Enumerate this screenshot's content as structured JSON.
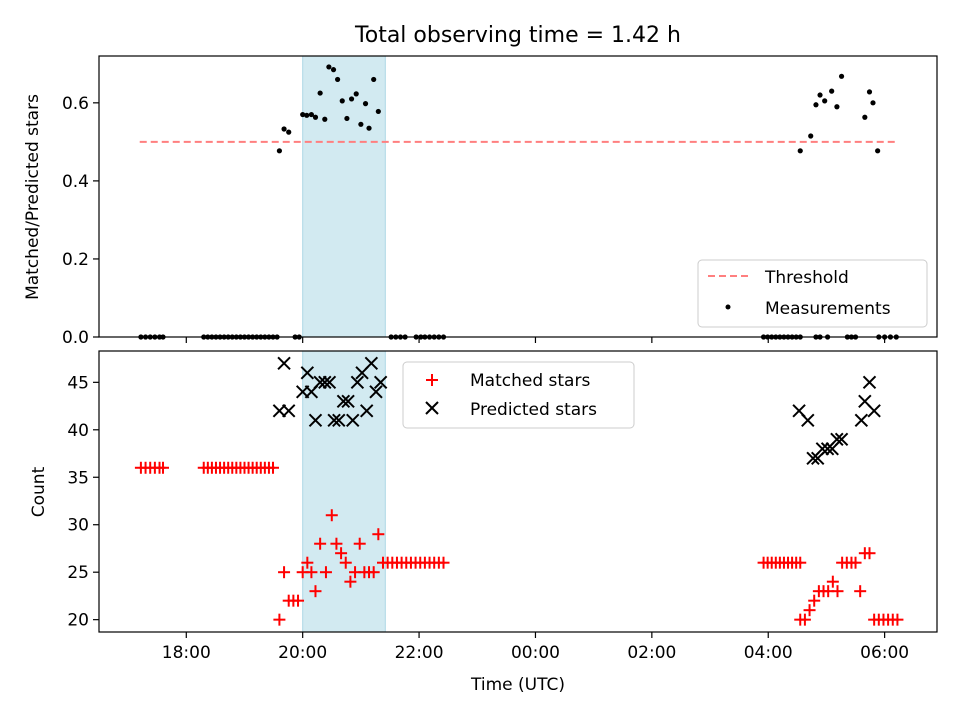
{
  "title": "Total observing time = 1.42 h",
  "xlabel": "Time (UTC)",
  "xticks": [
    {
      "h": 18,
      "label": "18:00"
    },
    {
      "h": 20,
      "label": "20:00"
    },
    {
      "h": 22,
      "label": "22:00"
    },
    {
      "h": 24,
      "label": "00:00"
    },
    {
      "h": 26,
      "label": "02:00"
    },
    {
      "h": 28,
      "label": "04:00"
    },
    {
      "h": 30,
      "label": "06:00"
    }
  ],
  "xlim": [
    16.5,
    30.9
  ],
  "span": {
    "start": 20.0,
    "end": 21.42,
    "color": "#add8e6"
  },
  "chart_data": [
    {
      "type": "scatter",
      "ylabel": "Matched/Predicted stars",
      "ylim": [
        0,
        0.72
      ],
      "yticks": [
        {
          "v": 0.0,
          "label": "0.0"
        },
        {
          "v": 0.2,
          "label": "0.2"
        },
        {
          "v": 0.4,
          "label": "0.4"
        },
        {
          "v": 0.6,
          "label": "0.6"
        }
      ],
      "threshold": {
        "name": "Threshold",
        "value": 0.5,
        "x": [
          17.2,
          30.2
        ],
        "color": "#ff7f7f"
      },
      "legend_position": "lower-right",
      "series": [
        {
          "name": "Measurements",
          "marker": "dot",
          "color": "#000000",
          "points": [
            [
              17.22,
              0
            ],
            [
              17.3,
              0
            ],
            [
              17.38,
              0
            ],
            [
              17.46,
              0
            ],
            [
              17.54,
              0
            ],
            [
              17.6,
              0
            ],
            [
              18.3,
              0
            ],
            [
              18.37,
              0
            ],
            [
              18.44,
              0
            ],
            [
              18.51,
              0
            ],
            [
              18.58,
              0
            ],
            [
              18.65,
              0
            ],
            [
              18.72,
              0
            ],
            [
              18.79,
              0
            ],
            [
              18.86,
              0
            ],
            [
              18.93,
              0
            ],
            [
              19.0,
              0
            ],
            [
              19.07,
              0
            ],
            [
              19.14,
              0
            ],
            [
              19.21,
              0
            ],
            [
              19.28,
              0
            ],
            [
              19.35,
              0
            ],
            [
              19.42,
              0
            ],
            [
              19.49,
              0
            ],
            [
              19.56,
              0
            ],
            [
              19.87,
              0
            ],
            [
              19.94,
              0
            ],
            [
              21.52,
              0
            ],
            [
              21.6,
              0
            ],
            [
              21.68,
              0
            ],
            [
              21.76,
              0
            ],
            [
              21.95,
              0
            ],
            [
              22.03,
              0
            ],
            [
              22.1,
              0
            ],
            [
              22.18,
              0
            ],
            [
              22.26,
              0
            ],
            [
              22.34,
              0
            ],
            [
              22.42,
              0
            ],
            [
              29.9,
              0
            ],
            [
              30.0,
              0
            ],
            [
              30.1,
              0
            ],
            [
              30.2,
              0
            ],
            [
              19.6,
              0.477
            ],
            [
              19.68,
              0.533
            ],
            [
              19.76,
              0.525
            ],
            [
              20.0,
              0.57
            ],
            [
              20.07,
              0.568
            ],
            [
              20.15,
              0.57
            ],
            [
              20.22,
              0.563
            ],
            [
              20.3,
              0.625
            ],
            [
              20.38,
              0.558
            ],
            [
              20.45,
              0.692
            ],
            [
              20.53,
              0.685
            ],
            [
              20.6,
              0.66
            ],
            [
              20.68,
              0.605
            ],
            [
              20.76,
              0.56
            ],
            [
              20.84,
              0.61
            ],
            [
              20.92,
              0.623
            ],
            [
              21.0,
              0.545
            ],
            [
              21.08,
              0.598
            ],
            [
              21.14,
              0.535
            ],
            [
              21.22,
              0.66
            ],
            [
              21.3,
              0.578
            ],
            [
              27.92,
              0
            ],
            [
              27.99,
              0
            ],
            [
              28.06,
              0
            ],
            [
              28.13,
              0
            ],
            [
              28.2,
              0
            ],
            [
              28.27,
              0
            ],
            [
              28.34,
              0
            ],
            [
              28.41,
              0
            ],
            [
              28.48,
              0
            ],
            [
              28.55,
              0
            ],
            [
              28.82,
              0
            ],
            [
              28.89,
              0
            ],
            [
              29.02,
              0
            ],
            [
              29.36,
              0
            ],
            [
              29.43,
              0
            ],
            [
              29.5,
              0
            ],
            [
              28.55,
              0.477
            ],
            [
              28.73,
              0.515
            ],
            [
              28.82,
              0.595
            ],
            [
              28.89,
              0.62
            ],
            [
              28.97,
              0.605
            ],
            [
              29.09,
              0.63
            ],
            [
              29.18,
              0.59
            ],
            [
              29.26,
              0.668
            ],
            [
              29.66,
              0.563
            ],
            [
              29.74,
              0.628
            ],
            [
              29.8,
              0.6
            ],
            [
              29.88,
              0.477
            ]
          ]
        }
      ]
    },
    {
      "type": "scatter",
      "ylabel": "Count",
      "ylim": [
        18.7,
        48.3
      ],
      "yticks": [
        {
          "v": 20,
          "label": "20"
        },
        {
          "v": 25,
          "label": "25"
        },
        {
          "v": 30,
          "label": "30"
        },
        {
          "v": 35,
          "label": "35"
        },
        {
          "v": 40,
          "label": "40"
        },
        {
          "v": 45,
          "label": "45"
        }
      ],
      "legend_position": "upper-center",
      "series": [
        {
          "name": "Matched stars",
          "marker": "plus",
          "color": "#ff0000",
          "points": [
            [
              17.22,
              36
            ],
            [
              17.3,
              36
            ],
            [
              17.38,
              36
            ],
            [
              17.46,
              36
            ],
            [
              17.54,
              36
            ],
            [
              17.6,
              36
            ],
            [
              18.3,
              36
            ],
            [
              18.37,
              36
            ],
            [
              18.44,
              36
            ],
            [
              18.51,
              36
            ],
            [
              18.58,
              36
            ],
            [
              18.65,
              36
            ],
            [
              18.72,
              36
            ],
            [
              18.79,
              36
            ],
            [
              18.86,
              36
            ],
            [
              18.93,
              36
            ],
            [
              19.0,
              36
            ],
            [
              19.07,
              36
            ],
            [
              19.14,
              36
            ],
            [
              19.21,
              36
            ],
            [
              19.28,
              36
            ],
            [
              19.35,
              36
            ],
            [
              19.42,
              36
            ],
            [
              19.49,
              36
            ],
            [
              19.6,
              20
            ],
            [
              19.68,
              25
            ],
            [
              19.76,
              22
            ],
            [
              19.84,
              22
            ],
            [
              19.92,
              22
            ],
            [
              20.0,
              25
            ],
            [
              20.08,
              26
            ],
            [
              20.15,
              25
            ],
            [
              20.22,
              23
            ],
            [
              20.3,
              28
            ],
            [
              20.4,
              25
            ],
            [
              20.5,
              31
            ],
            [
              20.58,
              28
            ],
            [
              20.66,
              27
            ],
            [
              20.74,
              26
            ],
            [
              20.82,
              24
            ],
            [
              20.9,
              25
            ],
            [
              20.98,
              28
            ],
            [
              21.06,
              25
            ],
            [
              21.14,
              25
            ],
            [
              21.22,
              25
            ],
            [
              21.3,
              29
            ],
            [
              21.38,
              26
            ],
            [
              21.46,
              26
            ],
            [
              21.54,
              26
            ],
            [
              21.62,
              26
            ],
            [
              21.7,
              26
            ],
            [
              21.78,
              26
            ],
            [
              21.86,
              26
            ],
            [
              21.94,
              26
            ],
            [
              22.02,
              26
            ],
            [
              22.1,
              26
            ],
            [
              22.18,
              26
            ],
            [
              22.26,
              26
            ],
            [
              22.34,
              26
            ],
            [
              22.42,
              26
            ],
            [
              27.92,
              26
            ],
            [
              27.99,
              26
            ],
            [
              28.06,
              26
            ],
            [
              28.13,
              26
            ],
            [
              28.2,
              26
            ],
            [
              28.27,
              26
            ],
            [
              28.34,
              26
            ],
            [
              28.41,
              26
            ],
            [
              28.48,
              26
            ],
            [
              28.55,
              26
            ],
            [
              28.55,
              20
            ],
            [
              28.63,
              20
            ],
            [
              28.71,
              21
            ],
            [
              28.79,
              22
            ],
            [
              28.87,
              23
            ],
            [
              28.95,
              23
            ],
            [
              29.03,
              23
            ],
            [
              29.11,
              24
            ],
            [
              29.19,
              23
            ],
            [
              29.27,
              26
            ],
            [
              29.35,
              26
            ],
            [
              29.43,
              26
            ],
            [
              29.5,
              26
            ],
            [
              29.58,
              23
            ],
            [
              29.66,
              27
            ],
            [
              29.74,
              27
            ],
            [
              29.82,
              20
            ],
            [
              29.9,
              20
            ],
            [
              29.98,
              20
            ],
            [
              30.06,
              20
            ],
            [
              30.14,
              20
            ],
            [
              30.22,
              20
            ]
          ]
        },
        {
          "name": "Predicted stars",
          "marker": "x",
          "color": "#000000",
          "points": [
            [
              19.6,
              42
            ],
            [
              19.68,
              47
            ],
            [
              19.76,
              42
            ],
            [
              20.0,
              44
            ],
            [
              20.08,
              46
            ],
            [
              20.15,
              44
            ],
            [
              20.22,
              41
            ],
            [
              20.3,
              45
            ],
            [
              20.38,
              45
            ],
            [
              20.46,
              45
            ],
            [
              20.54,
              41
            ],
            [
              20.62,
              41
            ],
            [
              20.7,
              43
            ],
            [
              20.78,
              43
            ],
            [
              20.86,
              41
            ],
            [
              20.94,
              45
            ],
            [
              21.02,
              46
            ],
            [
              21.1,
              42
            ],
            [
              21.18,
              47
            ],
            [
              21.26,
              44
            ],
            [
              21.34,
              45
            ],
            [
              28.53,
              42
            ],
            [
              28.68,
              41
            ],
            [
              28.77,
              37
            ],
            [
              28.85,
              37
            ],
            [
              28.93,
              38
            ],
            [
              29.02,
              38
            ],
            [
              29.1,
              38
            ],
            [
              29.18,
              39
            ],
            [
              29.26,
              39
            ],
            [
              29.6,
              41
            ],
            [
              29.66,
              43
            ],
            [
              29.74,
              45
            ],
            [
              29.82,
              42
            ]
          ]
        }
      ]
    }
  ]
}
